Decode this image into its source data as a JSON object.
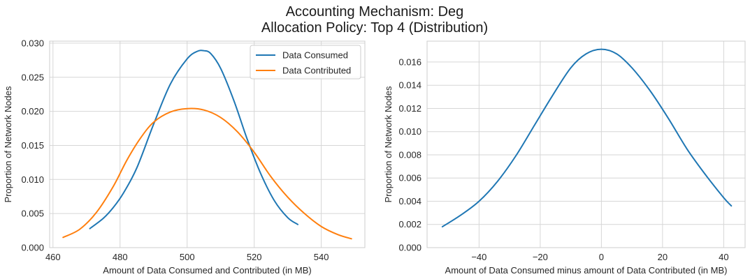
{
  "title": {
    "line1": "Accounting Mechanism: Deg",
    "line2": "Allocation Policy: Top 4 (Distribution)"
  },
  "chart_data": [
    {
      "type": "line",
      "title": "",
      "xlabel": "Amount of Data Consumed and Contributed (in MB)",
      "ylabel": "Proportion of Network Nodes",
      "xlim": [
        459,
        553
      ],
      "ylim": [
        0,
        0.0303
      ],
      "xticks": [
        460,
        480,
        500,
        520,
        540
      ],
      "yticks": [
        0.0,
        0.005,
        0.01,
        0.015,
        0.02,
        0.025,
        0.03
      ],
      "xtick_labels": [
        "460",
        "480",
        "500",
        "520",
        "540"
      ],
      "ytick_labels": [
        "0.000",
        "0.005",
        "0.010",
        "0.015",
        "0.020",
        "0.025",
        "0.030"
      ],
      "grid": true,
      "legend_position": "top-right",
      "series": [
        {
          "name": "Data Consumed",
          "color": "#1f77b4",
          "x": [
            471,
            475,
            478,
            481,
            485,
            490,
            495,
            500,
            503,
            505,
            507,
            510,
            514,
            518,
            522,
            526,
            530,
            533
          ],
          "y": [
            0.0028,
            0.0043,
            0.0059,
            0.008,
            0.0117,
            0.0181,
            0.024,
            0.0277,
            0.0288,
            0.0289,
            0.0285,
            0.0263,
            0.0215,
            0.0158,
            0.0108,
            0.0069,
            0.0044,
            0.0034
          ]
        },
        {
          "name": "Data Contributed",
          "color": "#ff7f0e",
          "x": [
            463,
            468,
            473,
            478,
            482,
            486,
            490,
            495,
            500,
            505,
            510,
            515,
            520,
            525,
            530,
            535,
            540,
            545,
            549
          ],
          "y": [
            0.0015,
            0.0027,
            0.0052,
            0.009,
            0.0128,
            0.016,
            0.0184,
            0.0199,
            0.0204,
            0.0202,
            0.0191,
            0.017,
            0.014,
            0.0104,
            0.0074,
            0.005,
            0.0031,
            0.0019,
            0.0013
          ]
        }
      ]
    },
    {
      "type": "line",
      "title": "",
      "xlabel": "Amount of Data Consumed minus amount of Data Contributed (in MB)",
      "ylabel": "Proportion of Network Nodes",
      "xlim": [
        -57,
        47
      ],
      "ylim": [
        0,
        0.0178
      ],
      "xticks": [
        -40,
        -20,
        0,
        20,
        40
      ],
      "yticks": [
        0.0,
        0.002,
        0.004,
        0.006,
        0.008,
        0.01,
        0.012,
        0.014,
        0.016
      ],
      "xtick_labels": [
        "−40",
        "−20",
        "0",
        "20",
        "40"
      ],
      "ytick_labels": [
        "0.000",
        "0.002",
        "0.004",
        "0.006",
        "0.008",
        "0.010",
        "0.012",
        "0.014",
        "0.016"
      ],
      "grid": true,
      "series": [
        {
          "color": "#1f77b4",
          "x": [
            -52,
            -46,
            -40,
            -34,
            -28,
            -22,
            -16,
            -10,
            -5,
            0,
            5,
            10,
            16,
            22,
            28,
            34,
            40,
            42.5
          ],
          "y": [
            0.0018,
            0.0028,
            0.004,
            0.0057,
            0.0079,
            0.0105,
            0.0131,
            0.0155,
            0.0167,
            0.0171,
            0.0167,
            0.0155,
            0.0135,
            0.0111,
            0.0085,
            0.0063,
            0.0043,
            0.0036
          ]
        }
      ]
    }
  ]
}
